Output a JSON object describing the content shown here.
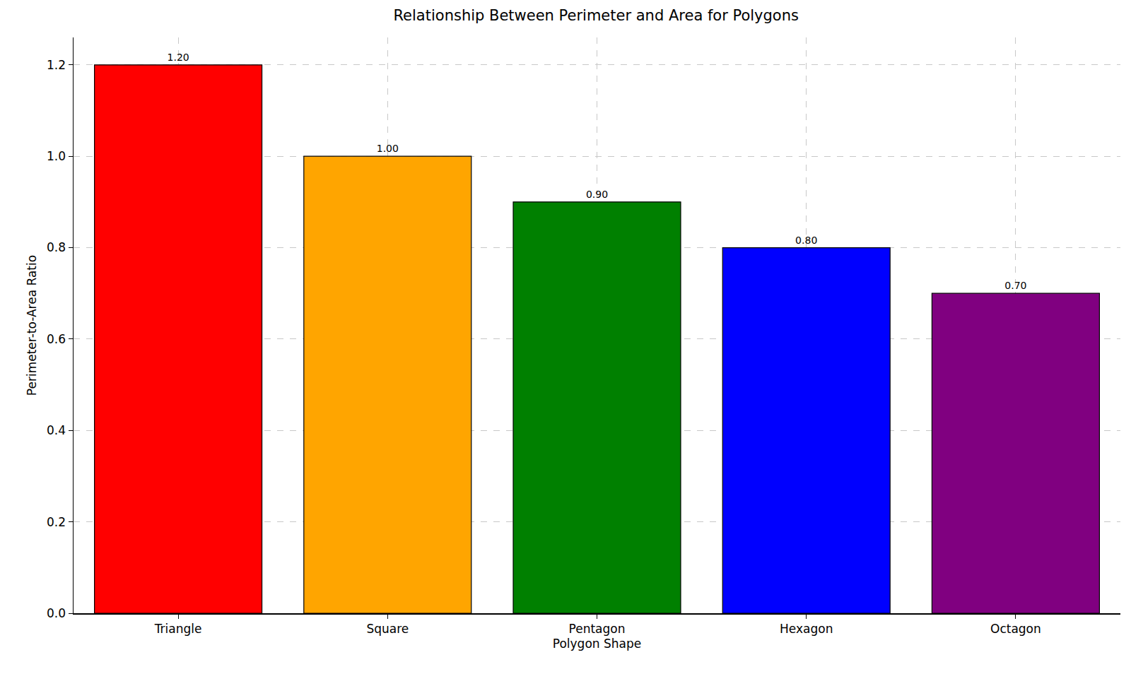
{
  "chart_data": {
    "type": "bar",
    "title": "Relationship Between Perimeter and Area for Polygons",
    "x_label": "Polygon Shape",
    "y_label": "Perimeter-to-Area Ratio",
    "categories": [
      "Triangle",
      "Square",
      "Pentagon",
      "Hexagon",
      "Octagon"
    ],
    "values": [
      1.2,
      1.0,
      0.9,
      0.8,
      0.7
    ],
    "value_labels": [
      "1.20",
      "1.00",
      "0.90",
      "0.80",
      "0.70"
    ],
    "colors": [
      "#ff0000",
      "#ffa500",
      "#008000",
      "#0000ff",
      "#800080"
    ],
    "ylim": [
      0,
      1.26
    ],
    "yticks": [
      {
        "value": 0,
        "label": "0.0"
      },
      0.2,
      0.4,
      0.6,
      0.8,
      {
        "value": 1.0,
        "label": "1.0"
      },
      1.2
    ],
    "grid": true,
    "data_labels": true
  }
}
